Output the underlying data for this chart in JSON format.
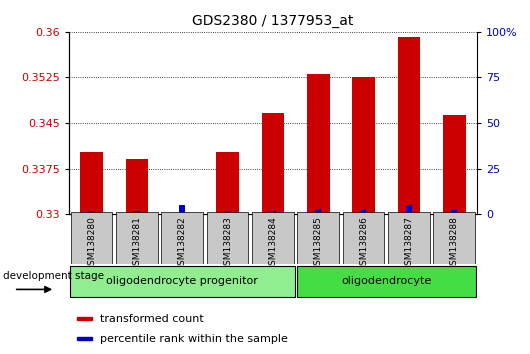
{
  "title": "GDS2380 / 1377953_at",
  "samples": [
    "GSM138280",
    "GSM138281",
    "GSM138282",
    "GSM138283",
    "GSM138284",
    "GSM138285",
    "GSM138286",
    "GSM138287",
    "GSM138288"
  ],
  "transformed_count": [
    0.3402,
    0.339,
    0.33,
    0.3402,
    0.3467,
    0.353,
    0.3525,
    0.3592,
    0.3463
  ],
  "percentile_rank": [
    2,
    2,
    5,
    2,
    2,
    3,
    3,
    5,
    3
  ],
  "ylim_left": [
    0.33,
    0.36
  ],
  "ylim_right": [
    0,
    100
  ],
  "yticks_left": [
    0.33,
    0.3375,
    0.345,
    0.3525,
    0.36
  ],
  "yticks_right": [
    0,
    25,
    50,
    75,
    100
  ],
  "groups": [
    {
      "label": "oligodendrocyte progenitor",
      "start": 0,
      "end": 4,
      "color": "#90EE90"
    },
    {
      "label": "oligodendrocyte",
      "start": 5,
      "end": 8,
      "color": "#44DD44"
    }
  ],
  "bar_color_red": "#CC0000",
  "bar_color_blue": "#0000CC",
  "bar_width": 0.5,
  "tick_label_bg": "#C8C8C8",
  "left_tick_color": "#CC0000",
  "right_tick_color": "#0000BB",
  "legend_red_label": "transformed count",
  "legend_blue_label": "percentile rank within the sample",
  "dev_stage_label": "development stage"
}
